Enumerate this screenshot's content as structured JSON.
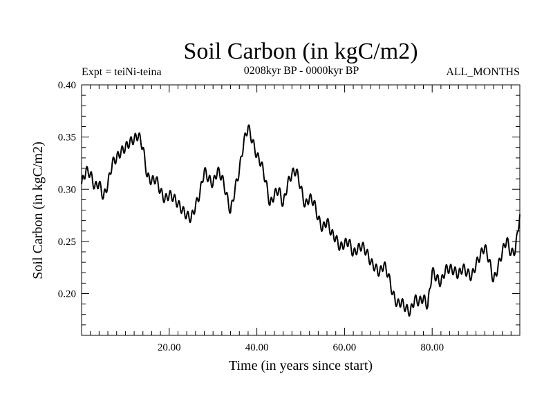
{
  "chart_data": {
    "type": "line",
    "title": "Soil Carbon (in kgC/m2)",
    "subtitle_left": "Expt = teiNi-teina",
    "subtitle_center": "0208kyr BP - 0000kyr BP",
    "subtitle_right": "ALL_MONTHS",
    "xlabel": "Time (in years since start)",
    "ylabel": "Soil Carbon (in kgC/m2)",
    "xlim": [
      0,
      100
    ],
    "ylim": [
      0.16,
      0.4
    ],
    "x_ticks": [
      {
        "value": 20,
        "label": "20.00"
      },
      {
        "value": 40,
        "label": "40.00"
      },
      {
        "value": 60,
        "label": "60.00"
      },
      {
        "value": 80,
        "label": "80.00"
      }
    ],
    "y_ticks": [
      {
        "value": 0.2,
        "label": "0.20"
      },
      {
        "value": 0.25,
        "label": "0.25"
      },
      {
        "value": 0.3,
        "label": "0.30"
      },
      {
        "value": 0.35,
        "label": "0.35"
      },
      {
        "value": 0.4,
        "label": "0.40"
      }
    ],
    "grid": false,
    "series": [
      {
        "name": "Soil Carbon",
        "color": "#000000",
        "x": [
          0,
          1,
          2,
          3,
          4,
          5,
          6,
          7,
          8,
          9,
          10,
          11,
          12,
          13,
          14,
          15,
          16,
          17,
          18,
          19,
          20,
          21,
          22,
          23,
          24,
          25,
          26,
          27,
          28,
          29,
          30,
          31,
          32,
          33,
          34,
          35,
          36,
          37,
          38,
          39,
          40,
          41,
          42,
          43,
          44,
          45,
          46,
          47,
          48,
          49,
          50,
          51,
          52,
          53,
          54,
          55,
          56,
          57,
          58,
          59,
          60,
          61,
          62,
          63,
          64,
          65,
          66,
          67,
          68,
          69,
          70,
          71,
          72,
          73,
          74,
          75,
          76,
          77,
          78,
          79,
          80,
          81,
          82,
          83,
          84,
          85,
          86,
          87,
          88,
          89,
          90,
          91,
          92,
          93,
          94,
          95,
          96,
          97,
          98,
          99,
          100
        ],
        "values": [
          0.305,
          0.318,
          0.315,
          0.302,
          0.306,
          0.292,
          0.305,
          0.325,
          0.33,
          0.336,
          0.34,
          0.345,
          0.348,
          0.352,
          0.34,
          0.312,
          0.308,
          0.31,
          0.298,
          0.29,
          0.295,
          0.292,
          0.286,
          0.28,
          0.275,
          0.272,
          0.284,
          0.296,
          0.318,
          0.31,
          0.305,
          0.318,
          0.312,
          0.296,
          0.278,
          0.3,
          0.318,
          0.345,
          0.36,
          0.346,
          0.332,
          0.325,
          0.308,
          0.285,
          0.295,
          0.3,
          0.285,
          0.305,
          0.315,
          0.318,
          0.302,
          0.284,
          0.292,
          0.288,
          0.272,
          0.262,
          0.27,
          0.258,
          0.253,
          0.244,
          0.248,
          0.25,
          0.238,
          0.243,
          0.246,
          0.24,
          0.23,
          0.225,
          0.22,
          0.228,
          0.218,
          0.2,
          0.19,
          0.192,
          0.186,
          0.182,
          0.195,
          0.192,
          0.196,
          0.188,
          0.222,
          0.215,
          0.21,
          0.223,
          0.224,
          0.222,
          0.218,
          0.225,
          0.22,
          0.216,
          0.228,
          0.237,
          0.245,
          0.232,
          0.212,
          0.225,
          0.24,
          0.252,
          0.238,
          0.242,
          0.276
        ]
      }
    ]
  }
}
